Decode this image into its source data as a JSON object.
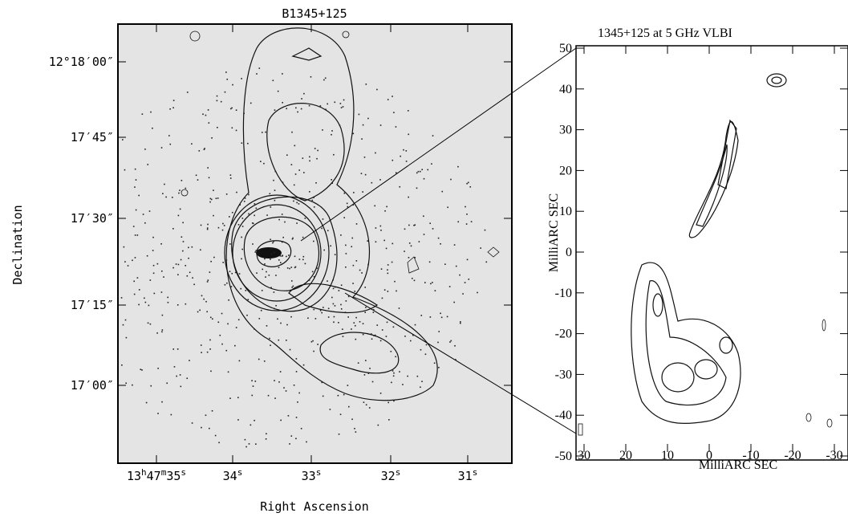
{
  "left_panel": {
    "title": "B1345+125",
    "x_axis_label": "Right Ascension",
    "y_axis_label": "Declination",
    "y_ticks": [
      "12°18′00″",
      "17′45″",
      "17′30″",
      "17′15″",
      "17′00″"
    ],
    "x_ticks": [
      [
        "13",
        "h",
        "47",
        "m",
        "35",
        "s"
      ],
      [
        "34",
        "s"
      ],
      [
        "33",
        "s"
      ],
      [
        "32",
        "s"
      ],
      [
        "31",
        "s"
      ]
    ]
  },
  "right_panel": {
    "title": "1345+125 at 5 GHz VLBI",
    "x_axis_label": "MilliARC SEC",
    "y_axis_label": "MilliARC SEC",
    "y_ticks": [
      "50",
      "40",
      "30",
      "20",
      "10",
      "0",
      "-10",
      "-20",
      "-30",
      "-40",
      "-50"
    ],
    "x_ticks": [
      "30",
      "20",
      "10",
      "0",
      "-10",
      "-20",
      "-30"
    ]
  }
}
